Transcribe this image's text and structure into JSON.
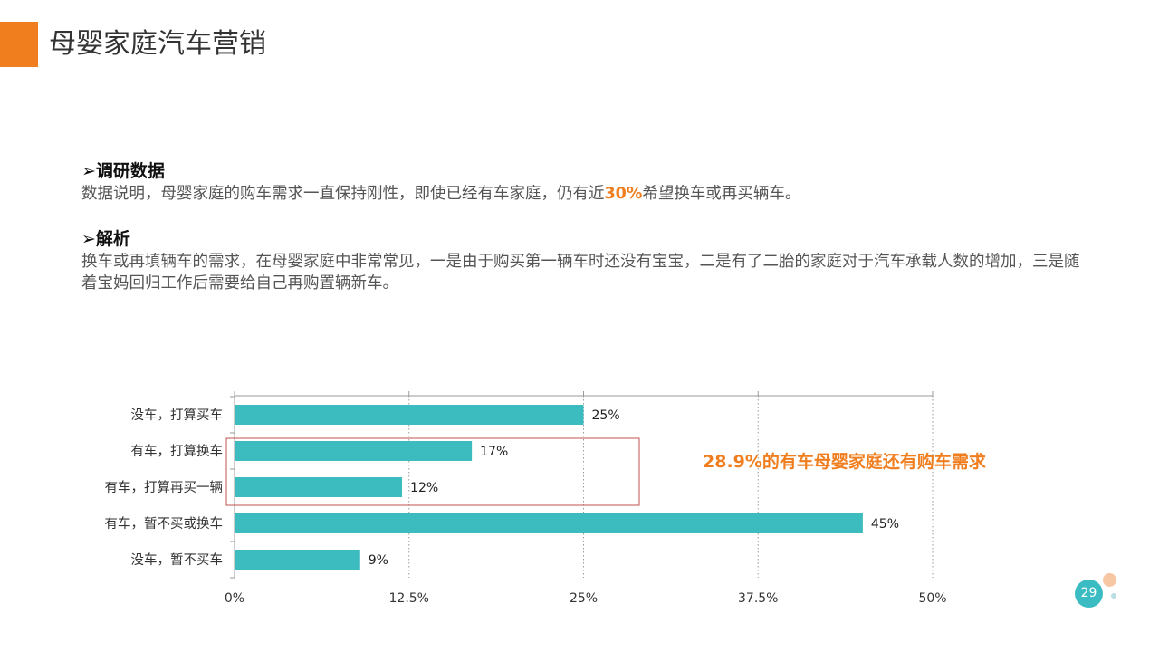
{
  "header": {
    "title": "母婴家庭汽车营销"
  },
  "sections": [
    {
      "arrow": "➢",
      "heading": "调研数据",
      "text_before": "数据说明，母婴家庭的购车需求一直保持刚性，即使已经有车家庭，仍有近",
      "highlight": "30%",
      "text_after": "希望换车或再买辆车。"
    },
    {
      "arrow": "➢",
      "heading": "解析",
      "text": "换车或再填辆车的需求，在母婴家庭中非常常见，一是由于购买第一辆车时还没有宝宝，二是有了二胎的家庭对于汽车承载人数的增加，三是随着宝妈回归工作后需要给自己再购置辆新车。"
    }
  ],
  "callout": "28.9%的有车母婴家庭还有购车需求",
  "page_number": "29",
  "colors": {
    "accent": "#f07e1e",
    "bar": "#3dbcc0",
    "highlight_box": "#c0504d"
  },
  "chart_data": {
    "type": "bar",
    "orientation": "horizontal",
    "categories": [
      "没车，打算买车",
      "有车，打算换车",
      "有车，打算再买一辆",
      "有车，暂不买或换车",
      "没车，暂不买车"
    ],
    "values": [
      25,
      17,
      12,
      45,
      9
    ],
    "value_labels": [
      "25%",
      "17%",
      "12%",
      "45%",
      "9%"
    ],
    "xticks": [
      0,
      12.5,
      25,
      37.5,
      50
    ],
    "xtick_labels": [
      "0%",
      "12.5%",
      "25%",
      "37.5%",
      "50%"
    ],
    "xlim": [
      0,
      50
    ],
    "grid": "vertical-dotted",
    "highlighted_categories": [
      "有车，打算换车",
      "有车，打算再买一辆"
    ]
  }
}
